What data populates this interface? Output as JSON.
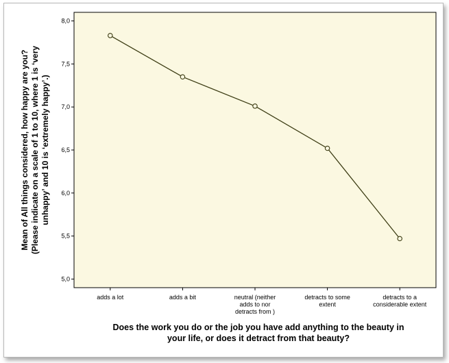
{
  "chart_data": {
    "type": "line",
    "categories": [
      [
        "adds a lot"
      ],
      [
        "adds a bit"
      ],
      [
        "neutral (neither",
        "adds to nor",
        "detracts from )"
      ],
      [
        "detracts to some",
        "extent"
      ],
      [
        "detracts to a",
        "considerable extent"
      ]
    ],
    "values": [
      7.83,
      7.35,
      7.01,
      6.52,
      5.47
    ],
    "ylim": [
      4.9,
      8.1
    ],
    "yticks": [
      "5,0",
      "5,5",
      "6,0",
      "6,5",
      "7,0",
      "7,5",
      "8,0"
    ],
    "ytick_values": [
      5.0,
      5.5,
      6.0,
      6.5,
      7.0,
      7.5,
      8.0
    ],
    "ylabel": [
      "Mean of All things considered, how happy are you?",
      "(Please indicate on a scale of 1 to 10, where 1 is ‘very",
      "unhappy’ and 10 is ‘extremely happy’.)"
    ],
    "xlabel": [
      "Does the work you do or the job you have add anything to the beauty in",
      "your life, or does it detract from that beauty?"
    ],
    "grid": false,
    "colors": {
      "plot_background": "#fbf8e1",
      "line": "#3d3d14",
      "marker_edge": "#3d3d14"
    }
  }
}
